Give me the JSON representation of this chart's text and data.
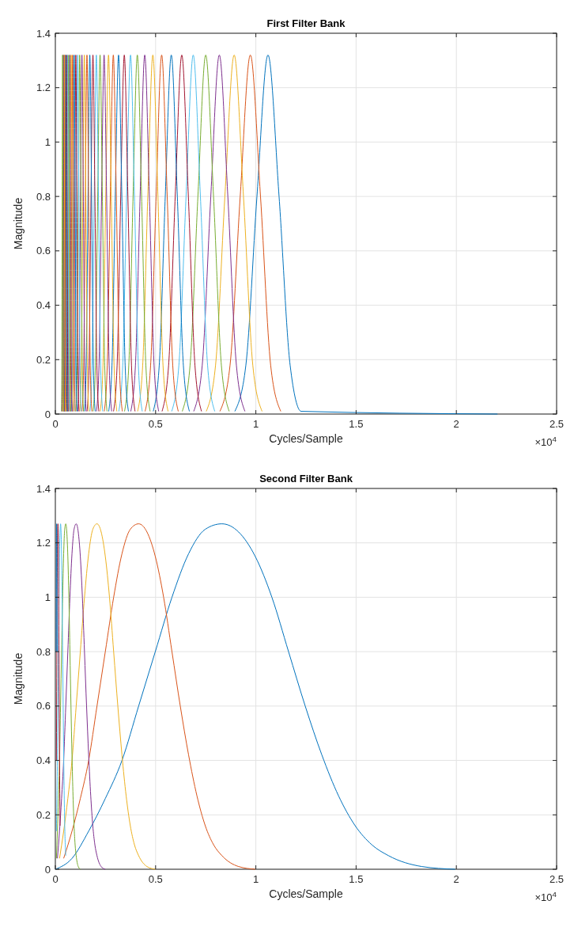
{
  "chart_data": [
    {
      "type": "line",
      "title": "First Filter Bank",
      "xlabel": "Cycles/Sample",
      "ylabel": "Magnitude",
      "annotations": [
        "×10$^{4}$"
      ],
      "xlim": [
        0,
        2.5
      ],
      "xticks": [
        0,
        0.5,
        1,
        1.5,
        2,
        2.5
      ],
      "ylim": [
        0,
        1.4
      ],
      "yticks": [
        0,
        0.2,
        0.4,
        0.6,
        0.8,
        1,
        1.2,
        1.4
      ],
      "grid": true,
      "line_style": "solid",
      "series": [
        {
          "color": "#0072bd",
          "x": [
            0.8952,
            0.9503,
            1.0055,
            1.0606,
            1.1158,
            1.1709,
            1.2261,
            2.205
          ],
          "values": [
            0.01,
            0.18,
            0.8,
            1.32,
            0.8,
            0.18,
            0.01,
            0
          ]
        },
        {
          "color": "#d95319",
          "x": [
            0.8209,
            0.8714,
            0.922,
            0.9726,
            1.0232,
            1.0738,
            1.1243
          ],
          "values": [
            0.01,
            0.18,
            0.8,
            1.32,
            0.8,
            0.18,
            0.01
          ]
        },
        {
          "color": "#edb120",
          "x": [
            0.7528,
            0.7991,
            0.8455,
            0.8919,
            0.9383,
            0.9847,
            1.031
          ],
          "values": [
            0.01,
            0.18,
            0.8,
            1.32,
            0.8,
            0.18,
            0.01
          ]
        },
        {
          "color": "#7e2f8e",
          "x": [
            0.6902,
            0.7327,
            0.7753,
            0.8178,
            0.8603,
            0.9029,
            0.9454
          ],
          "values": [
            0.01,
            0.18,
            0.8,
            1.32,
            0.8,
            0.18,
            0.01
          ]
        },
        {
          "color": "#77ac30",
          "x": [
            0.633,
            0.672,
            0.711,
            0.75,
            0.789,
            0.828,
            0.867
          ],
          "values": [
            0.01,
            0.18,
            0.8,
            1.32,
            0.8,
            0.18,
            0.01
          ]
        },
        {
          "color": "#4dbeee",
          "x": [
            0.5804,
            0.6162,
            0.6519,
            0.6877,
            0.7235,
            0.7592,
            0.795
          ],
          "values": [
            0.01,
            0.18,
            0.8,
            1.32,
            0.8,
            0.18,
            0.01
          ]
        },
        {
          "color": "#a2142f",
          "x": [
            0.5322,
            0.565,
            0.5978,
            0.6306,
            0.6634,
            0.6962,
            0.729
          ],
          "values": [
            0.01,
            0.18,
            0.8,
            1.32,
            0.8,
            0.18,
            0.01
          ]
        },
        {
          "color": "#0072bd",
          "x": [
            0.4881,
            0.5182,
            0.5482,
            0.5783,
            0.6084,
            0.6384,
            0.6685
          ],
          "values": [
            0.01,
            0.18,
            0.8,
            1.32,
            0.8,
            0.18,
            0.01
          ]
        },
        {
          "color": "#d95319",
          "x": [
            0.4476,
            0.4752,
            0.5027,
            0.5303,
            0.5579,
            0.5855,
            0.613
          ],
          "values": [
            0.01,
            0.18,
            0.8,
            1.32,
            0.8,
            0.18,
            0.01
          ]
        },
        {
          "color": "#edb120",
          "x": [
            0.4104,
            0.4357,
            0.461,
            0.4863,
            0.5116,
            0.5369,
            0.5622
          ],
          "values": [
            0.01,
            0.18,
            0.8,
            1.32,
            0.8,
            0.18,
            0.01
          ]
        },
        {
          "color": "#7e2f8e",
          "x": [
            0.3763,
            0.3995,
            0.4227,
            0.4459,
            0.4691,
            0.4923,
            0.5155
          ],
          "values": [
            0.01,
            0.18,
            0.8,
            1.32,
            0.8,
            0.18,
            0.01
          ]
        },
        {
          "color": "#77ac30",
          "x": [
            0.3451,
            0.3664,
            0.3876,
            0.4089,
            0.4302,
            0.4514,
            0.4727
          ],
          "values": [
            0.01,
            0.18,
            0.8,
            1.32,
            0.8,
            0.18,
            0.01
          ]
        },
        {
          "color": "#4dbeee",
          "x": [
            0.3165,
            0.336,
            0.3555,
            0.375,
            0.3945,
            0.414,
            0.4335
          ],
          "values": [
            0.01,
            0.18,
            0.8,
            1.32,
            0.8,
            0.18,
            0.01
          ]
        },
        {
          "color": "#a2142f",
          "x": [
            0.2903,
            0.3081,
            0.326,
            0.3439,
            0.3618,
            0.3797,
            0.3975
          ],
          "values": [
            0.01,
            0.18,
            0.8,
            1.32,
            0.8,
            0.18,
            0.01
          ]
        },
        {
          "color": "#0072bd",
          "x": [
            0.2661,
            0.2825,
            0.2989,
            0.3153,
            0.3317,
            0.3481,
            0.3645
          ],
          "values": [
            0.01,
            0.18,
            0.8,
            1.32,
            0.8,
            0.18,
            0.01
          ]
        },
        {
          "color": "#d95319",
          "x": [
            0.244,
            0.259,
            0.2741,
            0.2891,
            0.3041,
            0.3192,
            0.3342
          ],
          "values": [
            0.01,
            0.18,
            0.8,
            1.32,
            0.8,
            0.18,
            0.01
          ]
        },
        {
          "color": "#edb120",
          "x": [
            0.2238,
            0.2376,
            0.2514,
            0.2652,
            0.279,
            0.2928,
            0.3066
          ],
          "values": [
            0.01,
            0.18,
            0.8,
            1.32,
            0.8,
            0.18,
            0.01
          ]
        },
        {
          "color": "#7e2f8e",
          "x": [
            0.2052,
            0.2178,
            0.2305,
            0.2431,
            0.2557,
            0.2684,
            0.281
          ],
          "values": [
            0.01,
            0.18,
            0.8,
            1.32,
            0.8,
            0.18,
            0.01
          ]
        },
        {
          "color": "#77ac30",
          "x": [
            0.1882,
            0.1998,
            0.2114,
            0.223,
            0.2346,
            0.2462,
            0.2578
          ],
          "values": [
            0.01,
            0.18,
            0.8,
            1.32,
            0.8,
            0.18,
            0.01
          ]
        },
        {
          "color": "#4dbeee",
          "x": [
            0.1726,
            0.1832,
            0.1939,
            0.2045,
            0.2151,
            0.2258,
            0.2364
          ],
          "values": [
            0.01,
            0.18,
            0.8,
            1.32,
            0.8,
            0.18,
            0.01
          ]
        },
        {
          "color": "#a2142f",
          "x": [
            0.1583,
            0.168,
            0.1778,
            0.1875,
            0.1973,
            0.207,
            0.2168
          ],
          "values": [
            0.01,
            0.18,
            0.8,
            1.32,
            0.8,
            0.18,
            0.01
          ]
        },
        {
          "color": "#0072bd",
          "x": [
            0.1451,
            0.154,
            0.163,
            0.1719,
            0.1808,
            0.1898,
            0.1987
          ],
          "values": [
            0.01,
            0.18,
            0.8,
            1.32,
            0.8,
            0.18,
            0.01
          ]
        },
        {
          "color": "#d95319",
          "x": [
            0.1331,
            0.1413,
            0.1495,
            0.1577,
            0.1659,
            0.1741,
            0.1823
          ],
          "values": [
            0.01,
            0.18,
            0.8,
            1.32,
            0.8,
            0.18,
            0.01
          ]
        },
        {
          "color": "#edb120",
          "x": [
            0.122,
            0.1296,
            0.1371,
            0.1446,
            0.1521,
            0.1596,
            0.1672
          ],
          "values": [
            0.01,
            0.18,
            0.8,
            1.32,
            0.8,
            0.18,
            0.01
          ]
        },
        {
          "color": "#7e2f8e",
          "x": [
            0.1119,
            0.1188,
            0.1257,
            0.1326,
            0.1395,
            0.1464,
            0.1533
          ],
          "values": [
            0.01,
            0.18,
            0.8,
            1.32,
            0.8,
            0.18,
            0.01
          ]
        },
        {
          "color": "#77ac30",
          "x": [
            0.1026,
            0.109,
            0.1153,
            0.1216,
            0.1279,
            0.1342,
            0.1406
          ],
          "values": [
            0.01,
            0.18,
            0.8,
            1.32,
            0.8,
            0.18,
            0.01
          ]
        },
        {
          "color": "#4dbeee",
          "x": [
            0.0941,
            0.0999,
            0.1057,
            0.1115,
            0.1173,
            0.1231,
            0.1289
          ],
          "values": [
            0.01,
            0.18,
            0.8,
            1.32,
            0.8,
            0.18,
            0.01
          ]
        },
        {
          "color": "#a2142f",
          "x": [
            0.0863,
            0.0916,
            0.0969,
            0.1022,
            0.1075,
            0.1128,
            0.1181
          ],
          "values": [
            0.01,
            0.18,
            0.8,
            1.32,
            0.8,
            0.18,
            0.01
          ]
        },
        {
          "color": "#0072bd",
          "x": [
            0.0791,
            0.084,
            0.0888,
            0.0937,
            0.0986,
            0.1034,
            0.1083
          ],
          "values": [
            0.01,
            0.18,
            0.8,
            1.32,
            0.8,
            0.18,
            0.01
          ]
        },
        {
          "color": "#d95319",
          "x": [
            0.0726,
            0.0771,
            0.0815,
            0.086,
            0.0905,
            0.0949,
            0.0994
          ],
          "values": [
            0.01,
            0.18,
            0.8,
            1.32,
            0.8,
            0.18,
            0.01
          ]
        },
        {
          "color": "#edb120",
          "x": [
            0.0665,
            0.0706,
            0.0747,
            0.0788,
            0.0829,
            0.087,
            0.0911
          ],
          "values": [
            0.01,
            0.18,
            0.8,
            1.32,
            0.8,
            0.18,
            0.01
          ]
        },
        {
          "color": "#7e2f8e",
          "x": [
            0.061,
            0.0648,
            0.0685,
            0.0723,
            0.0761,
            0.0798,
            0.0836
          ],
          "values": [
            0.01,
            0.18,
            0.8,
            1.32,
            0.8,
            0.18,
            0.01
          ]
        },
        {
          "color": "#77ac30",
          "x": [
            0.056,
            0.0594,
            0.0629,
            0.0663,
            0.0698,
            0.0732,
            0.0767
          ],
          "values": [
            0.01,
            0.18,
            0.8,
            1.32,
            0.8,
            0.18,
            0.01
          ]
        },
        {
          "color": "#4dbeee",
          "x": [
            0.0513,
            0.0545,
            0.0576,
            0.0608,
            0.064,
            0.0671,
            0.0703
          ],
          "values": [
            0.01,
            0.18,
            0.8,
            1.32,
            0.8,
            0.18,
            0.01
          ]
        },
        {
          "color": "#a2142f",
          "x": [
            0.047,
            0.0499,
            0.0528,
            0.0557,
            0.0586,
            0.0615,
            0.0644
          ],
          "values": [
            0.01,
            0.18,
            0.8,
            1.32,
            0.8,
            0.18,
            0.01
          ]
        },
        {
          "color": "#0072bd",
          "x": [
            0.0431,
            0.0458,
            0.0484,
            0.0511,
            0.0538,
            0.0564,
            0.0591
          ],
          "values": [
            0.01,
            0.18,
            0.8,
            1.32,
            0.8,
            0.18,
            0.01
          ]
        },
        {
          "color": "#d95319",
          "x": [
            0.0396,
            0.042,
            0.0445,
            0.0469,
            0.0493,
            0.0518,
            0.0542
          ],
          "values": [
            0.01,
            0.18,
            0.8,
            1.32,
            0.8,
            0.18,
            0.01
          ]
        },
        {
          "color": "#edb120",
          "x": [
            0.0363,
            0.0385,
            0.0408,
            0.043,
            0.0452,
            0.0475,
            0.0497
          ],
          "values": [
            0.01,
            0.18,
            0.8,
            1.32,
            0.8,
            0.18,
            0.01
          ]
        },
        {
          "color": "#7e2f8e",
          "x": [
            0.0333,
            0.0353,
            0.0374,
            0.0394,
            0.0415,
            0.0435,
            0.0456
          ],
          "values": [
            0.01,
            0.18,
            0.8,
            1.32,
            0.8,
            0.18,
            0.01
          ]
        },
        {
          "color": "#77ac30",
          "x": [
            0.0305,
            0.0323,
            0.0342,
            0.0361,
            0.038,
            0.0399,
            0.0417
          ],
          "values": [
            0.01,
            0.18,
            0.8,
            1.32,
            0.8,
            0.18,
            0.01
          ]
        }
      ]
    },
    {
      "type": "line",
      "title": "Second Filter Bank",
      "xlabel": "Cycles/Sample",
      "ylabel": "Magnitude",
      "annotations": [
        "×10$^{4}$"
      ],
      "xlim": [
        0,
        2.5
      ],
      "xticks": [
        0,
        0.5,
        1,
        1.5,
        2,
        2.5
      ],
      "ylim": [
        0,
        1.4
      ],
      "yticks": [
        0,
        0.2,
        0.4,
        0.6,
        0.8,
        1,
        1.2,
        1.4
      ],
      "grid": true,
      "line_style": "solid",
      "series": [
        {
          "color": "#0072bd",
          "x": [
            0,
            0.0831,
            0.1662,
            0.2492,
            0.3323,
            0.4154,
            0.4985,
            0.5816,
            0.6646,
            0.7477,
            0.8308,
            0.9139,
            0.997,
            1.08,
            1.1631,
            1.2462,
            1.3293,
            1.4124,
            1.4954,
            1.5785,
            1.6616,
            1.8278,
            1.9939
          ],
          "values": [
            0,
            0.04,
            0.14,
            0.26,
            0.4,
            0.6,
            0.8,
            1,
            1.16,
            1.25,
            1.27,
            1.24,
            1.15,
            1,
            0.8,
            0.6,
            0.42,
            0.27,
            0.16,
            0.09,
            0.05,
            0.01,
            0
          ]
        },
        {
          "color": "#d95319",
          "x": [
            0.0415,
            0.0831,
            0.1246,
            0.1662,
            0.2077,
            0.2492,
            0.2908,
            0.3323,
            0.3739,
            0.4154,
            0.4569,
            0.4985,
            0.54,
            0.5816,
            0.6231,
            0.6646,
            0.7062,
            0.7477,
            0.7893,
            0.8308,
            0.9139,
            0.997
          ],
          "values": [
            0.04,
            0.14,
            0.26,
            0.4,
            0.6,
            0.8,
            1,
            1.16,
            1.25,
            1.27,
            1.24,
            1.15,
            1,
            0.8,
            0.6,
            0.42,
            0.27,
            0.16,
            0.09,
            0.05,
            0.01,
            0
          ]
        },
        {
          "color": "#edb120",
          "x": [
            0.0208,
            0.0415,
            0.0623,
            0.0831,
            0.1039,
            0.1246,
            0.1454,
            0.1662,
            0.1869,
            0.2077,
            0.2285,
            0.2492,
            0.27,
            0.2908,
            0.3116,
            0.3323,
            0.3531,
            0.3739,
            0.3946,
            0.4154,
            0.4569,
            0.4985
          ],
          "values": [
            0.04,
            0.14,
            0.26,
            0.4,
            0.6,
            0.8,
            1,
            1.16,
            1.25,
            1.27,
            1.24,
            1.15,
            1,
            0.8,
            0.6,
            0.42,
            0.27,
            0.16,
            0.09,
            0.05,
            0.01,
            0
          ]
        },
        {
          "color": "#7e2f8e",
          "x": [
            0.0104,
            0.0208,
            0.0311,
            0.0415,
            0.0519,
            0.0623,
            0.0727,
            0.083,
            0.0934,
            0.1038,
            0.1142,
            0.1246,
            0.1349,
            0.1453,
            0.1557,
            0.1661,
            0.1765,
            0.1868,
            0.1972,
            0.2076,
            0.2284,
            0.2491
          ],
          "values": [
            0.04,
            0.14,
            0.26,
            0.4,
            0.6,
            0.8,
            1,
            1.16,
            1.25,
            1.27,
            1.24,
            1.15,
            1,
            0.8,
            0.6,
            0.42,
            0.27,
            0.16,
            0.09,
            0.05,
            0.01,
            0
          ]
        },
        {
          "color": "#77ac30",
          "x": [
            0.0052,
            0.0104,
            0.0156,
            0.0208,
            0.026,
            0.0311,
            0.0363,
            0.0415,
            0.0467,
            0.0519,
            0.0571,
            0.0623,
            0.0675,
            0.0727,
            0.0779,
            0.083,
            0.0882,
            0.0934,
            0.0986,
            0.1038,
            0.1142,
            0.1246
          ],
          "values": [
            0.04,
            0.14,
            0.26,
            0.4,
            0.6,
            0.8,
            1,
            1.16,
            1.25,
            1.27,
            1.24,
            1.15,
            1,
            0.8,
            0.6,
            0.42,
            0.27,
            0.16,
            0.09,
            0.05,
            0.01,
            0
          ]
        },
        {
          "color": "#4dbeee",
          "x": [
            0.0052,
            0.0104,
            0.0156,
            0.0208,
            0.026,
            0.0312,
            0.0364,
            0.0416,
            0.0468,
            0.052
          ],
          "values": [
            0.14,
            0.4,
            0.8,
            1.16,
            1.27,
            1.15,
            0.8,
            0.42,
            0.16,
            0.05
          ]
        },
        {
          "color": "#a2142f",
          "x": [
            0.0052,
            0.0078,
            0.0104,
            0.013,
            0.0156,
            0.0182,
            0.0208,
            0.0234
          ],
          "values": [
            0.4,
            0.8,
            1.16,
            1.27,
            1.15,
            0.8,
            0.42,
            0.16
          ]
        },
        {
          "color": "#0072bd",
          "x": [
            0.0039,
            0.0052,
            0.0065,
            0.0078,
            0.0091
          ],
          "values": [
            0.8,
            1.16,
            1.27,
            1.15,
            0.8
          ]
        }
      ]
    }
  ]
}
